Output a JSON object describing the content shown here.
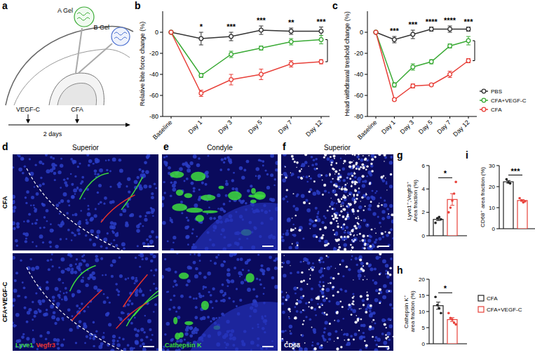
{
  "chart_data": [
    {
      "type": "line",
      "y_label": "Relative bite force change (%)",
      "categories": [
        "Baseline",
        "Day 1",
        "Day 3",
        "Day 5",
        "Day 7",
        "Day 12"
      ],
      "ylim": [
        -80,
        20
      ],
      "yticks": [
        -80,
        -60,
        -40,
        -20,
        0
      ],
      "marker": "circle",
      "significance": [
        null,
        "*",
        "***",
        "***",
        "**",
        "***"
      ],
      "series": [
        {
          "color": "#333333",
          "values": [
            0,
            -6,
            -4,
            2,
            1,
            1
          ],
          "errors": [
            0,
            6,
            4,
            4,
            3,
            4
          ]
        },
        {
          "color": "#3aaa35",
          "values": [
            0,
            -41,
            -21,
            -15,
            -9,
            -7
          ],
          "errors": [
            0,
            2,
            3,
            2,
            3,
            4
          ]
        },
        {
          "color": "#e8413a",
          "values": [
            0,
            -58,
            -45,
            -40,
            -30,
            -28
          ],
          "errors": [
            0,
            3,
            5,
            5,
            3,
            2
          ]
        }
      ]
    },
    {
      "type": "line",
      "y_label": "Head withdrawal treshold change (%)",
      "categories": [
        "Baseline",
        "Day 1",
        "Day 3",
        "Day 5",
        "Day 7",
        "Day 12"
      ],
      "ylim": [
        -80,
        20
      ],
      "yticks": [
        -80,
        -60,
        -40,
        -20,
        0
      ],
      "marker": "circle",
      "legend": "right",
      "significance": [
        null,
        "***",
        "***",
        "****",
        "****",
        "***"
      ],
      "series": [
        {
          "name": "PBS",
          "color": "#333333",
          "values": [
            0,
            -7,
            -2,
            3,
            3,
            3
          ],
          "errors": [
            0,
            3,
            4,
            2,
            3,
            2
          ]
        },
        {
          "name": "CFA+VEGF-C",
          "color": "#3aaa35",
          "values": [
            0,
            -50,
            -33,
            -28,
            -13,
            -8
          ],
          "errors": [
            0,
            2,
            3,
            2,
            2,
            4
          ]
        },
        {
          "name": "CFA",
          "color": "#e8413a",
          "values": [
            0,
            -64,
            -51,
            -50,
            -40,
            -27
          ],
          "errors": [
            0,
            1,
            2,
            1,
            3,
            2
          ]
        }
      ]
    },
    {
      "type": "bar",
      "y_label": "Lyve1⁺;Vegfr3⁺ Area fraction (%)",
      "categories": [
        null
      ],
      "ylim": [
        0,
        6
      ],
      "yticks": [
        0,
        2,
        4,
        6
      ],
      "significance": "*",
      "series": [
        {
          "color": "#222222",
          "values": [
            1.4
          ],
          "errors": [
            0.1
          ],
          "points": [
            1.1,
            1.5,
            1.6,
            1.4
          ]
        },
        {
          "color": "#e8413a",
          "values": [
            3.1
          ],
          "errors": [
            0.5
          ],
          "points": [
            2.0,
            2.4,
            3.0,
            3.6,
            4.6
          ]
        }
      ]
    },
    {
      "type": "bar",
      "y_label": "Cathepsin K⁺ area fraction (%)",
      "categories": [
        null
      ],
      "ylim": [
        0,
        20
      ],
      "yticks": [
        0,
        5,
        10,
        15,
        20
      ],
      "significance": "*",
      "legend": "right",
      "series": [
        {
          "name": "CFA",
          "color": "#222222",
          "values": [
            11.8
          ],
          "errors": [
            1.1
          ],
          "points": [
            14.5,
            12.0,
            11.0,
            9.5
          ]
        },
        {
          "name": "CFA+VEGF-C",
          "color": "#e8413a",
          "values": [
            7.5
          ],
          "errors": [
            0.6
          ],
          "points": [
            9.5,
            8.0,
            7.5,
            6.5,
            6.0
          ]
        }
      ]
    },
    {
      "type": "bar",
      "y_label": "CD68⁺ area fraction (%)",
      "categories": [
        null
      ],
      "ylim": [
        0,
        30
      ],
      "yticks": [
        0,
        10,
        20,
        30
      ],
      "significance": "***",
      "series": [
        {
          "color": "#222222",
          "values": [
            22.3
          ],
          "errors": [
            0.6
          ],
          "points": [
            23.5,
            22.0,
            21.5
          ]
        },
        {
          "color": "#e8413a",
          "values": [
            13.4
          ],
          "errors": [
            0.4
          ],
          "points": [
            14.5,
            13.5,
            12.5,
            13.0
          ]
        }
      ]
    }
  ],
  "figure": {
    "panel_letters": [
      "a",
      "b",
      "c",
      "d",
      "e",
      "f",
      "g",
      "h",
      "i"
    ],
    "schematic": {
      "gel_a": "A Gel",
      "gel_b": "B Gel",
      "timeline": [
        "VEGF-C",
        "CFA"
      ],
      "interval": "2 days"
    },
    "images": {
      "rows": [
        "CFA",
        "CFA+VEGF-C"
      ],
      "columns": [
        {
          "title": "Superior",
          "stains": [
            {
              "name": "Lyve1",
              "color": "#3ddc3d"
            },
            {
              "name": "Vegfr3",
              "color": "#e8322a"
            }
          ]
        },
        {
          "title": "Condyle",
          "stains": [
            {
              "name": "Cathepsin K",
              "color": "#3ddc3d"
            }
          ]
        },
        {
          "title": "Superior",
          "stains": [
            {
              "name": "CD68",
              "color": "#ffffff"
            }
          ]
        }
      ]
    }
  }
}
